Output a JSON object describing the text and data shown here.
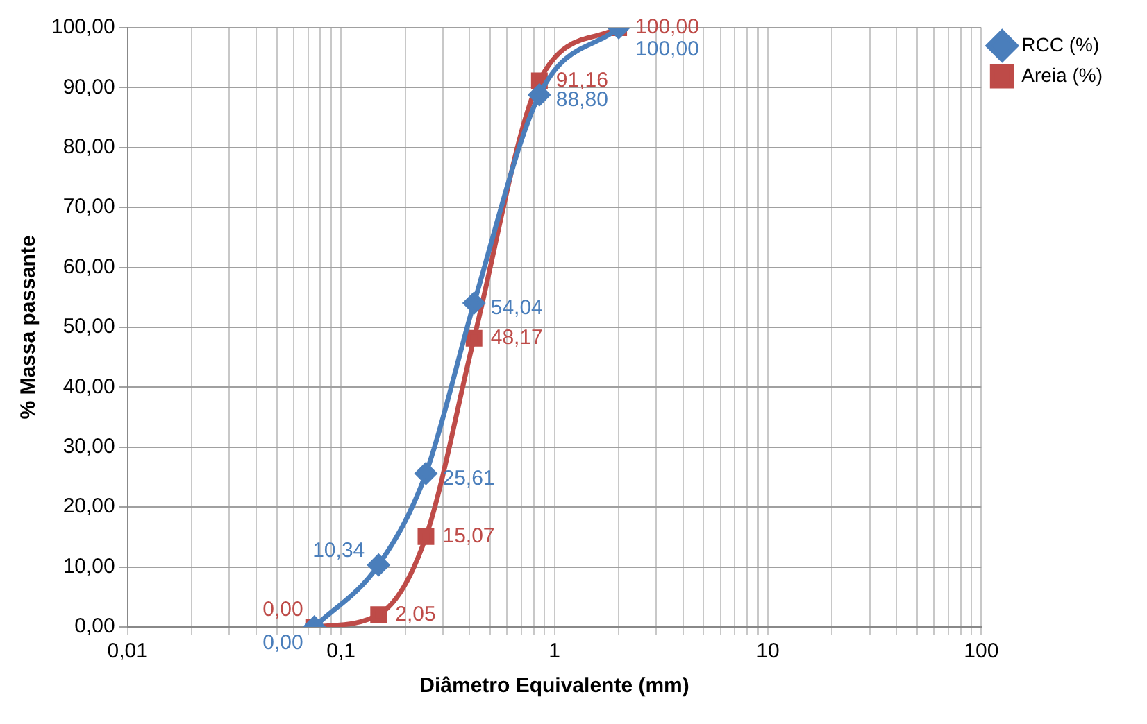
{
  "chart_data": {
    "type": "line",
    "xlabel": "Diâmetro Equivalente (mm)",
    "ylabel": "% Massa passante",
    "log": "x",
    "grid": true,
    "legend": "right",
    "x": [
      0.075,
      0.15,
      0.25,
      0.42,
      0.85,
      2.0
    ],
    "series": [
      {
        "name": "RCC (%)",
        "color": "#4a7ebb",
        "marker": "diamond",
        "values": [
          0.0,
          10.34,
          25.61,
          54.04,
          88.8,
          100.0
        ],
        "value_labels": [
          "0,00",
          "10,34",
          "25,61",
          "54,04",
          "88,80",
          "100,00"
        ]
      },
      {
        "name": "Areia (%)",
        "color": "#be4b48",
        "marker": "square",
        "values": [
          0.0,
          2.05,
          15.07,
          48.17,
          91.16,
          100.0
        ],
        "value_labels": [
          "0,00",
          "2,05",
          "15,07",
          "48,17",
          "91,16",
          "100,00"
        ]
      }
    ],
    "xlim": [
      0.01,
      100
    ],
    "xticks": [
      {
        "value": 0.01,
        "label": "0,01"
      },
      {
        "value": 0.02,
        "label": null
      },
      {
        "value": 0.03,
        "label": null
      },
      {
        "value": 0.04,
        "label": null
      },
      {
        "value": 0.05,
        "label": null
      },
      {
        "value": 0.06,
        "label": null
      },
      {
        "value": 0.07,
        "label": null
      },
      {
        "value": 0.08,
        "label": null
      },
      {
        "value": 0.09,
        "label": null
      },
      {
        "value": 0.1,
        "label": "0,1"
      },
      {
        "value": 0.2,
        "label": null
      },
      {
        "value": 0.3,
        "label": null
      },
      {
        "value": 0.4,
        "label": null
      },
      {
        "value": 0.5,
        "label": null
      },
      {
        "value": 0.6,
        "label": null
      },
      {
        "value": 0.7,
        "label": null
      },
      {
        "value": 0.8,
        "label": null
      },
      {
        "value": 0.9,
        "label": null
      },
      1,
      {
        "value": 2,
        "label": null
      },
      {
        "value": 3,
        "label": null
      },
      {
        "value": 4,
        "label": null
      },
      {
        "value": 5,
        "label": null
      },
      {
        "value": 6,
        "label": null
      },
      {
        "value": 7,
        "label": null
      },
      {
        "value": 8,
        "label": null
      },
      {
        "value": 9,
        "label": null
      },
      10,
      {
        "value": 20,
        "label": null
      },
      {
        "value": 30,
        "label": null
      },
      {
        "value": 40,
        "label": null
      },
      {
        "value": 50,
        "label": null
      },
      {
        "value": 60,
        "label": null
      },
      {
        "value": 70,
        "label": null
      },
      {
        "value": 80,
        "label": null
      },
      {
        "value": 90,
        "label": null
      },
      100
    ],
    "ylim": [
      0,
      100
    ],
    "yticks": [
      {
        "value": 0,
        "label": "0,00"
      },
      {
        "value": 10,
        "label": "10,00"
      },
      {
        "value": 20,
        "label": "20,00"
      },
      {
        "value": 30,
        "label": "30,00"
      },
      {
        "value": 40,
        "label": "40,00"
      },
      {
        "value": 50,
        "label": "50,00"
      },
      {
        "value": 60,
        "label": "60,00"
      },
      {
        "value": 70,
        "label": "70,00"
      },
      {
        "value": 80,
        "label": "80,00"
      },
      {
        "value": 90,
        "label": "90,00"
      },
      {
        "value": 100,
        "label": "100,00"
      }
    ]
  }
}
